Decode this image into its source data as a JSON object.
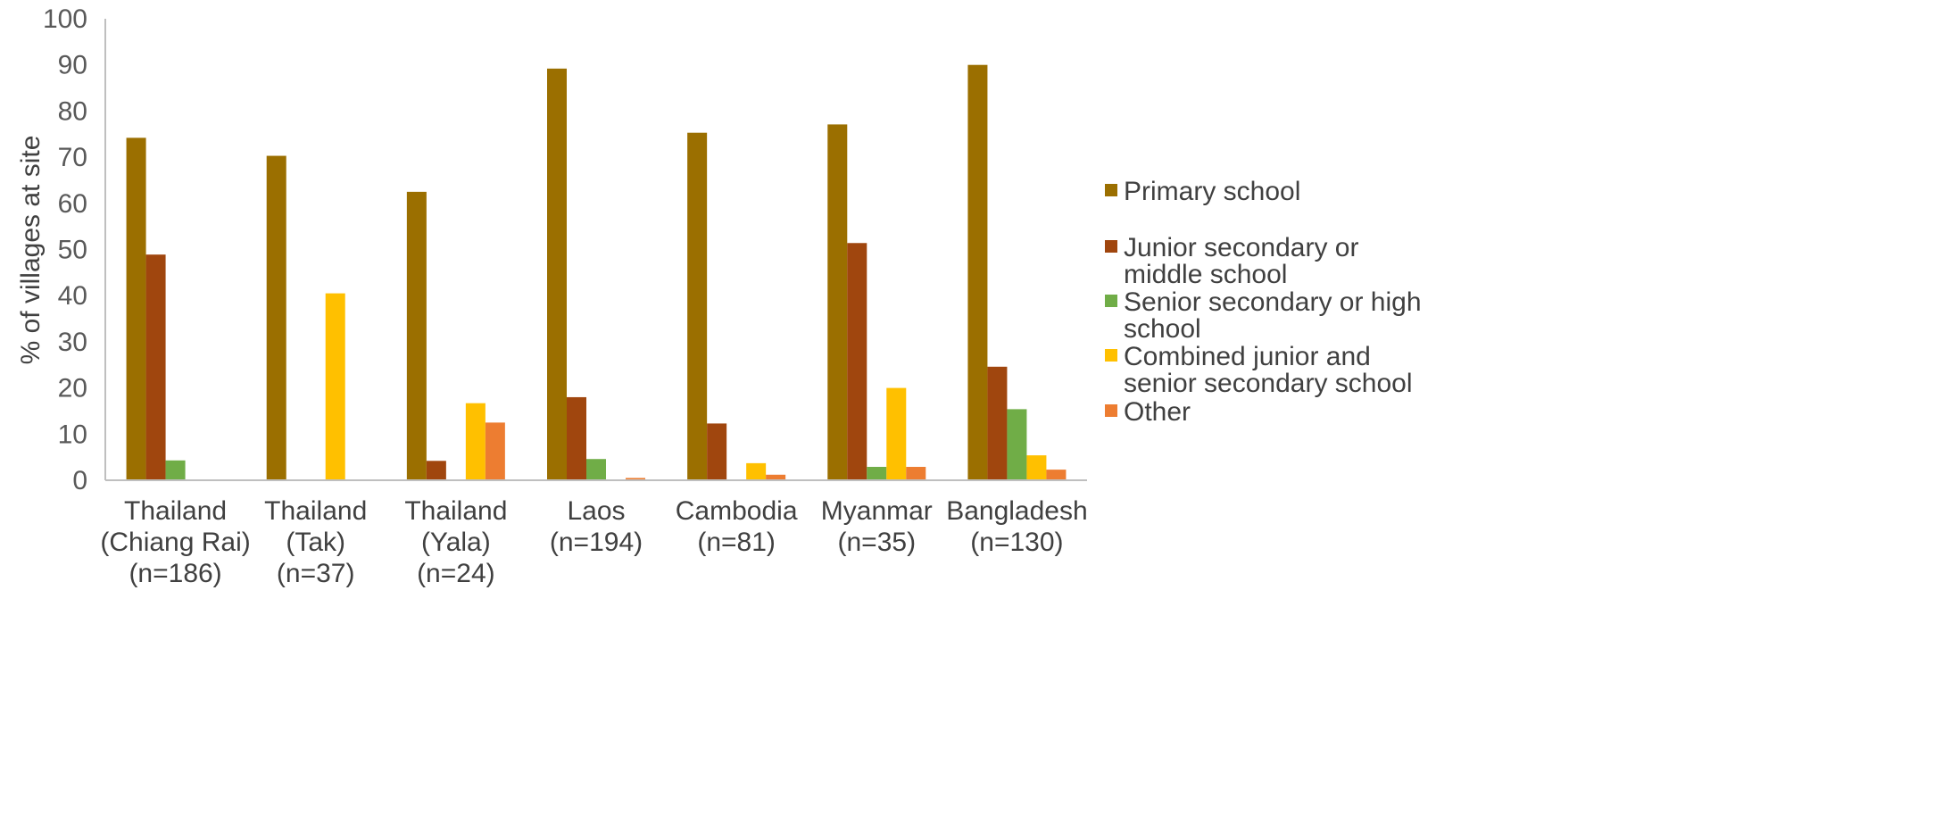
{
  "chart_data": {
    "type": "bar",
    "ylabel": "% of villages at site",
    "ylim": [
      0,
      100
    ],
    "yticks": [
      0,
      10,
      20,
      30,
      40,
      50,
      60,
      70,
      80,
      90,
      100
    ],
    "grid": false,
    "legend_position": "right",
    "categories": [
      [
        "Thailand",
        "(Chiang Rai)",
        "(n=186)"
      ],
      [
        "Thailand",
        "(Tak)",
        "(n=37)"
      ],
      [
        "Thailand",
        "(Yala)",
        "(n=24)"
      ],
      [
        "Laos",
        "(n=194)"
      ],
      [
        "Cambodia",
        "(n=81)"
      ],
      [
        "Myanmar",
        "(n=35)"
      ],
      [
        "Bangladesh",
        "(n=130)"
      ]
    ],
    "series": [
      {
        "name": [
          "Primary school"
        ],
        "color": "#9B6F00",
        "values": [
          74.2,
          70.3,
          62.5,
          89.2,
          75.3,
          77.1,
          90.0
        ]
      },
      {
        "name": [
          "Junior secondary or",
          "middle school"
        ],
        "color": "#A0460E",
        "values": [
          48.9,
          0,
          4.2,
          18.0,
          12.3,
          51.4,
          24.6
        ]
      },
      {
        "name": [
          "Senior secondary or high",
          "school"
        ],
        "color": "#70AD47",
        "values": [
          4.3,
          0,
          0,
          4.6,
          0,
          2.9,
          15.4
        ]
      },
      {
        "name": [
          "Combined junior and",
          "senior secondary school"
        ],
        "color": "#FFC000",
        "values": [
          0,
          40.5,
          16.7,
          0,
          3.7,
          20.0,
          5.4
        ]
      },
      {
        "name": [
          "Other"
        ],
        "color": "#ED7D31",
        "values": [
          0,
          0,
          12.5,
          0.5,
          1.2,
          2.9,
          2.3
        ]
      }
    ]
  }
}
